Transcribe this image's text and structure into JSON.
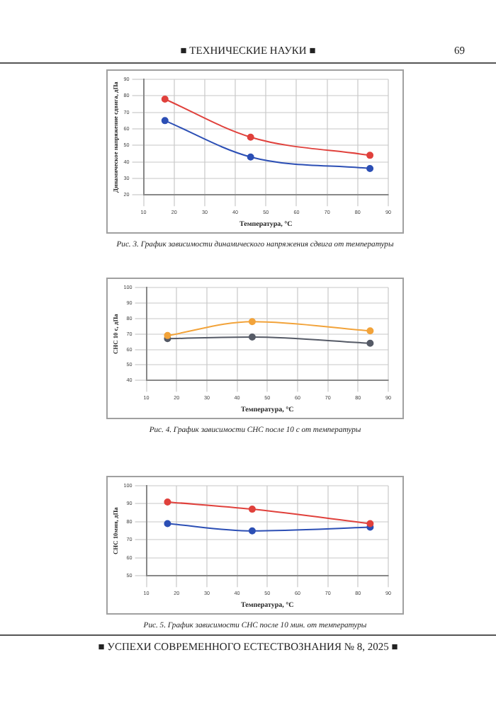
{
  "chart_data": [
    {
      "type": "other",
      "annotations": [
        "■  ТЕХНИЧЕСКИЕ НАУКИ  ■",
        "69"
      ]
    },
    {
      "type": "line",
      "xlabel": "Температура, °C",
      "ylabel": "Динамическое напряжение сдвига, дПа",
      "x": [
        17,
        45,
        84
      ],
      "xlim": [
        10,
        90
      ],
      "xticks": [
        10,
        20,
        30,
        40,
        50,
        60,
        70,
        80,
        90
      ],
      "ylim": [
        20,
        90
      ],
      "yticks": [
        20,
        30,
        40,
        50,
        60,
        70,
        80,
        90
      ],
      "grid": true,
      "marker": "circle",
      "series": [
        {
          "color": "#e0413c",
          "values": [
            78,
            55,
            44
          ]
        },
        {
          "color": "#2c4fb5",
          "values": [
            65,
            43,
            36
          ]
        }
      ],
      "annotations": [
        "Рис. 3. График зависимости динамического напряжения сдвига от температуры"
      ]
    },
    {
      "type": "line",
      "xlabel": "Температура, °C",
      "ylabel": "СНС 10 с, дПа",
      "x": [
        17,
        45,
        84
      ],
      "xlim": [
        10,
        90
      ],
      "xticks": [
        10,
        20,
        30,
        40,
        50,
        60,
        70,
        80,
        90
      ],
      "ylim": [
        40,
        100
      ],
      "yticks": [
        40,
        50,
        60,
        70,
        80,
        90,
        100
      ],
      "grid": true,
      "marker": "circle",
      "series": [
        {
          "color": "#f2a33a",
          "values": [
            69,
            78,
            72
          ]
        },
        {
          "color": "#555a66",
          "values": [
            67,
            68,
            64
          ]
        }
      ],
      "annotations": [
        "Рис. 4. График зависимости СНС после 10 с от температуры"
      ]
    },
    {
      "type": "line",
      "xlabel": "Температура, °C",
      "ylabel": "СНС 10мин, дПа",
      "x": [
        17,
        45,
        84
      ],
      "xlim": [
        10,
        90
      ],
      "xticks": [
        10,
        20,
        30,
        40,
        50,
        60,
        70,
        80,
        90
      ],
      "ylim": [
        50,
        100
      ],
      "yticks": [
        50,
        60,
        70,
        80,
        90,
        100
      ],
      "grid": true,
      "marker": "circle",
      "series": [
        {
          "color": "#e0413c",
          "values": [
            91,
            87,
            79
          ]
        },
        {
          "color": "#2c4fb5",
          "values": [
            79,
            75,
            77
          ]
        }
      ],
      "annotations": [
        "Рис. 5. График зависимости СНС после 10 мин. от температуры"
      ]
    },
    {
      "type": "other",
      "annotations": [
        "■  УСПЕХИ СОВРЕМЕННОГО ЕСТЕСТВОЗНАНИЯ     № 8, 2025  ■"
      ]
    }
  ]
}
